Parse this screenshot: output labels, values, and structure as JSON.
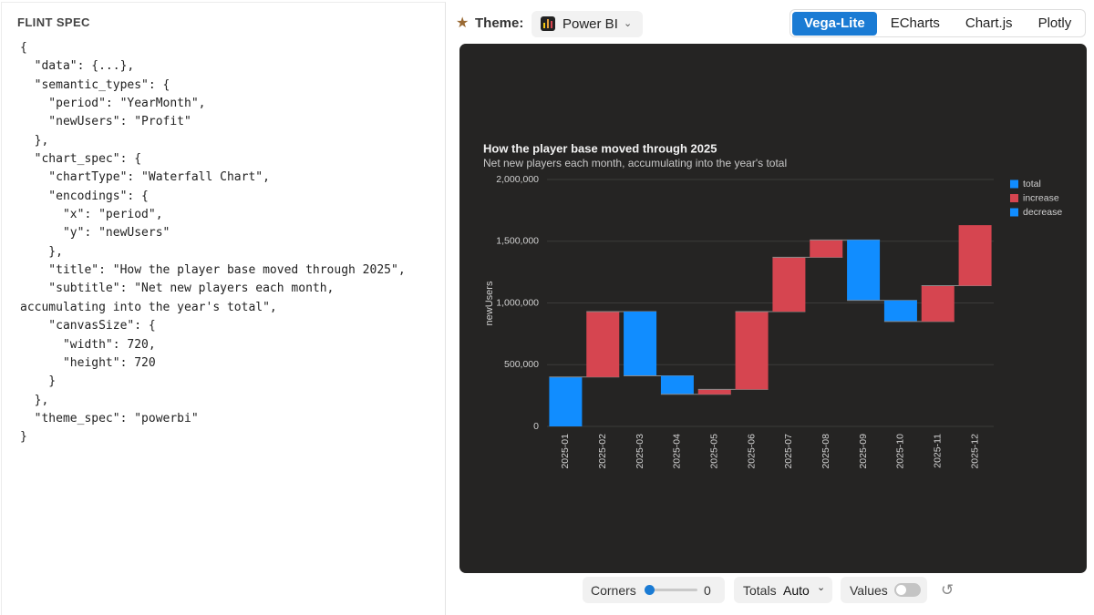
{
  "sidebar": {
    "title": "FLINT SPEC",
    "code_lines": [
      "{",
      "  \"data\": {...},",
      "  \"semantic_types\": {",
      "    \"period\": \"YearMonth\",",
      "    \"newUsers\": \"Profit\"",
      "  },",
      "  \"chart_spec\": {",
      "    \"chartType\": \"Waterfall Chart\",",
      "    \"encodings\": {",
      "      \"x\": \"period\",",
      "      \"y\": \"newUsers\"",
      "    },",
      "    \"title\": \"How the player base moved through 2025\",",
      "    \"subtitle\": \"Net new players each month,",
      "accumulating into the year's total\",",
      "    \"canvasSize\": {",
      "      \"width\": 720,",
      "      \"height\": 720",
      "    }",
      "  },",
      "  \"theme_spec\": \"powerbi\"",
      "}"
    ]
  },
  "toolbar": {
    "theme_label": "Theme:",
    "theme": "Power BI",
    "tabs": [
      "Vega-Lite",
      "ECharts",
      "Chart.js",
      "Plotly"
    ],
    "active_tab": 0
  },
  "controls": {
    "corners_label": "Corners",
    "corners_value": 0,
    "totals_label": "Totals",
    "totals_value": "Auto",
    "values_label": "Values",
    "values_on": false
  },
  "chart_data": {
    "type": "waterfall",
    "title": "How the player base moved through 2025",
    "subtitle": "Net new players each month, accumulating into the year's total",
    "y_label": "newUsers",
    "categories": [
      "2025-01",
      "2025-02",
      "2025-03",
      "2025-04",
      "2025-05",
      "2025-06",
      "2025-07",
      "2025-08",
      "2025-09",
      "2025-10",
      "2025-11",
      "2025-12"
    ],
    "values": [
      400000,
      530000,
      -520000,
      -150000,
      40000,
      630000,
      440000,
      140000,
      -490000,
      -170000,
      290000,
      490000
    ],
    "legend": [
      {
        "name": "total",
        "color": "#118DFF"
      },
      {
        "name": "increase",
        "color": "#D64550"
      },
      {
        "name": "decrease",
        "color": "#118DFF"
      }
    ],
    "ylim": [
      0,
      2000000
    ],
    "yticks": [
      0,
      {
        "value": 500000,
        "label": "500,000"
      },
      {
        "value": 1000000,
        "label": "1,000,000"
      },
      {
        "value": 1500000,
        "label": "1,500,000"
      },
      {
        "value": 2000000,
        "label": "2,000,000"
      }
    ],
    "grid": true
  }
}
